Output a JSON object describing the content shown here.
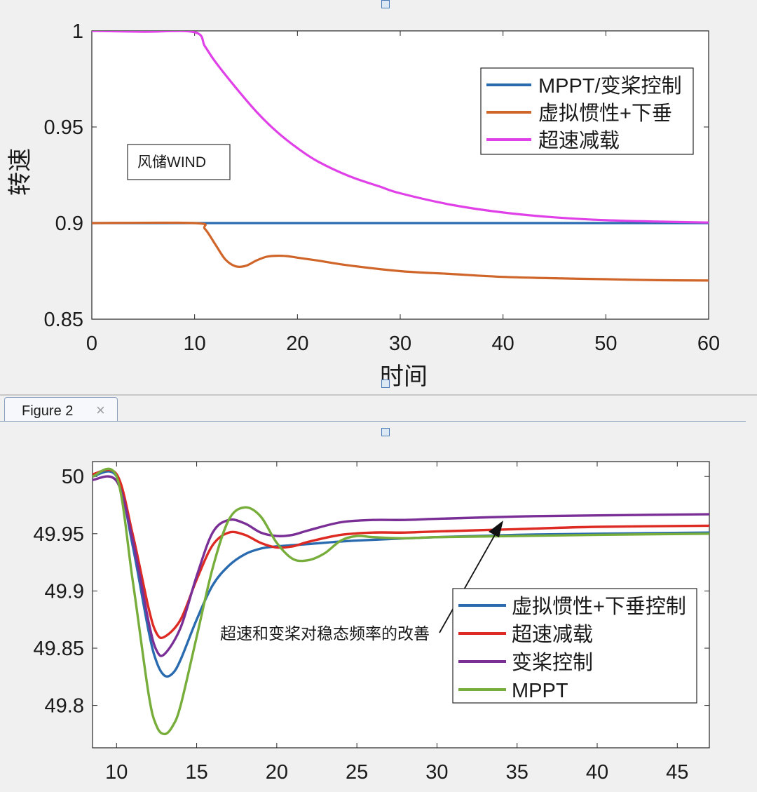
{
  "window": {
    "tab_label": "Figure 2",
    "tab_close": "×"
  },
  "charts": [
    {
      "type": "line",
      "title": "",
      "xlabel": "时间",
      "ylabel": "转速",
      "xlim": [
        0,
        60
      ],
      "ylim": [
        0.85,
        1.0
      ],
      "xticks": [
        "0",
        "10",
        "20",
        "30",
        "40",
        "50",
        "60"
      ],
      "yticks": [
        "0.85",
        "0.9",
        "0.95",
        "1"
      ],
      "annotation": "风储WIND",
      "legend_position": "top-right",
      "series": [
        {
          "name": "MPPT/变桨控制",
          "color": "#2a6bb0",
          "x": [
            0,
            10,
            60
          ],
          "y": [
            0.9,
            0.9,
            0.9
          ]
        },
        {
          "name": "虚拟惯性+下垂",
          "color": "#d0652a",
          "x": [
            0,
            10,
            11,
            12,
            13,
            14,
            15,
            16,
            17,
            18,
            19,
            20,
            22,
            25,
            30,
            35,
            40,
            45,
            50,
            55,
            60
          ],
          "y": [
            0.9,
            0.9,
            0.897,
            0.889,
            0.881,
            0.8775,
            0.8778,
            0.8805,
            0.8825,
            0.883,
            0.8828,
            0.882,
            0.8805,
            0.878,
            0.875,
            0.8735,
            0.872,
            0.8713,
            0.8708,
            0.8703,
            0.8701
          ]
        },
        {
          "name": "超速减载",
          "color": "#e040e8",
          "x": [
            0,
            5,
            10,
            11,
            12,
            14,
            16,
            18,
            20,
            22,
            25,
            28,
            30,
            35,
            40,
            45,
            50,
            55,
            60
          ],
          "y": [
            1.0,
            0.9996,
            0.9993,
            0.992,
            0.984,
            0.9705,
            0.958,
            0.9475,
            0.939,
            0.932,
            0.9245,
            0.919,
            0.9155,
            0.9095,
            0.9055,
            0.903,
            0.9015,
            0.9008,
            0.9003
          ]
        }
      ]
    },
    {
      "type": "line",
      "title": "",
      "xlabel": "",
      "ylabel": "",
      "xlim": [
        8.5,
        47
      ],
      "ylim": [
        49.763,
        50.013
      ],
      "xticks": [
        "10",
        "15",
        "20",
        "25",
        "30",
        "35",
        "40",
        "45"
      ],
      "yticks": [
        "49.8",
        "49.85",
        "49.9",
        "49.95",
        "50"
      ],
      "annotation": "超速和变桨对稳态频率的改善",
      "legend_position": "right",
      "series": [
        {
          "name": "虚拟惯性+下垂控制",
          "color": "#2a6bb0",
          "x": [
            8.5,
            10,
            11,
            12,
            12.5,
            13,
            13.5,
            14,
            15,
            16,
            17,
            18,
            19,
            20,
            22,
            25,
            30,
            35,
            40,
            47
          ],
          "y": [
            50.0,
            50.0,
            49.94,
            49.865,
            49.838,
            49.826,
            49.828,
            49.84,
            49.875,
            49.905,
            49.922,
            49.932,
            49.937,
            49.939,
            49.941,
            49.944,
            49.947,
            49.949,
            49.95,
            49.951
          ]
        },
        {
          "name": "超速减载",
          "color": "#dd2a22",
          "x": [
            8.5,
            10,
            11,
            12,
            12.5,
            13,
            14,
            15,
            16,
            17,
            18,
            19,
            20,
            21,
            22,
            24,
            26,
            28,
            30,
            35,
            40,
            47
          ],
          "y": [
            50.002,
            50.002,
            49.95,
            49.885,
            49.863,
            49.86,
            49.875,
            49.91,
            49.94,
            49.951,
            49.949,
            49.942,
            49.938,
            49.939,
            49.943,
            49.949,
            49.951,
            49.951,
            49.952,
            49.954,
            49.956,
            49.957
          ]
        },
        {
          "name": "变桨控制",
          "color": "#7a2f96",
          "x": [
            8.5,
            10,
            11,
            12,
            12.5,
            13,
            14,
            15,
            16,
            17,
            18,
            19,
            20,
            21,
            22,
            24,
            26,
            28,
            30,
            35,
            40,
            47
          ],
          "y": [
            49.997,
            49.996,
            49.945,
            49.873,
            49.848,
            49.845,
            49.868,
            49.913,
            49.951,
            49.962,
            49.959,
            49.951,
            49.948,
            49.949,
            49.953,
            49.96,
            49.962,
            49.962,
            49.963,
            49.965,
            49.966,
            49.967
          ]
        },
        {
          "name": "MPPT",
          "color": "#77ad3a",
          "x": [
            8.5,
            10,
            11,
            12,
            12.5,
            13,
            13.5,
            14,
            15,
            16,
            17,
            18,
            19,
            20,
            21,
            22,
            23,
            24,
            25,
            26,
            28,
            30,
            35,
            40,
            47
          ],
          "y": [
            50.0,
            50.0,
            49.91,
            49.81,
            49.782,
            49.775,
            49.782,
            49.8,
            49.86,
            49.92,
            49.962,
            49.973,
            49.965,
            49.942,
            49.928,
            49.927,
            49.933,
            49.944,
            49.948,
            49.947,
            49.946,
            49.947,
            49.948,
            49.949,
            49.95
          ]
        }
      ]
    }
  ],
  "chart_data": [
    {
      "type": "line",
      "xlabel": "时间",
      "ylabel": "转速",
      "xlim": [
        0,
        60
      ],
      "ylim": [
        0.85,
        1.0
      ],
      "series": [
        {
          "name": "MPPT/变桨控制",
          "x": [
            0,
            10,
            60
          ],
          "y": [
            0.9,
            0.9,
            0.9
          ]
        },
        {
          "name": "虚拟惯性+下垂",
          "x": [
            0,
            10,
            14,
            18,
            20,
            30,
            60
          ],
          "y": [
            0.9,
            0.9,
            0.8775,
            0.883,
            0.882,
            0.875,
            0.8701
          ]
        },
        {
          "name": "超速减载",
          "x": [
            0,
            10,
            20,
            30,
            40,
            60
          ],
          "y": [
            1.0,
            0.9993,
            0.939,
            0.9155,
            0.9055,
            0.9003
          ]
        }
      ]
    },
    {
      "type": "line",
      "xlim": [
        8.5,
        47
      ],
      "ylim": [
        49.763,
        50.013
      ],
      "series": [
        {
          "name": "虚拟惯性+下垂控制",
          "x": [
            10,
            13,
            20,
            47
          ],
          "y": [
            50.0,
            49.826,
            49.939,
            49.951
          ]
        },
        {
          "name": "超速减载",
          "x": [
            10,
            13,
            17,
            20,
            47
          ],
          "y": [
            50.002,
            49.86,
            49.951,
            49.938,
            49.957
          ]
        },
        {
          "name": "变桨控制",
          "x": [
            10,
            13,
            17,
            20,
            47
          ],
          "y": [
            49.996,
            49.845,
            49.962,
            49.948,
            49.967
          ]
        },
        {
          "name": "MPPT",
          "x": [
            10,
            13,
            18,
            22,
            47
          ],
          "y": [
            50.0,
            49.775,
            49.973,
            49.927,
            49.95
          ]
        }
      ]
    }
  ]
}
